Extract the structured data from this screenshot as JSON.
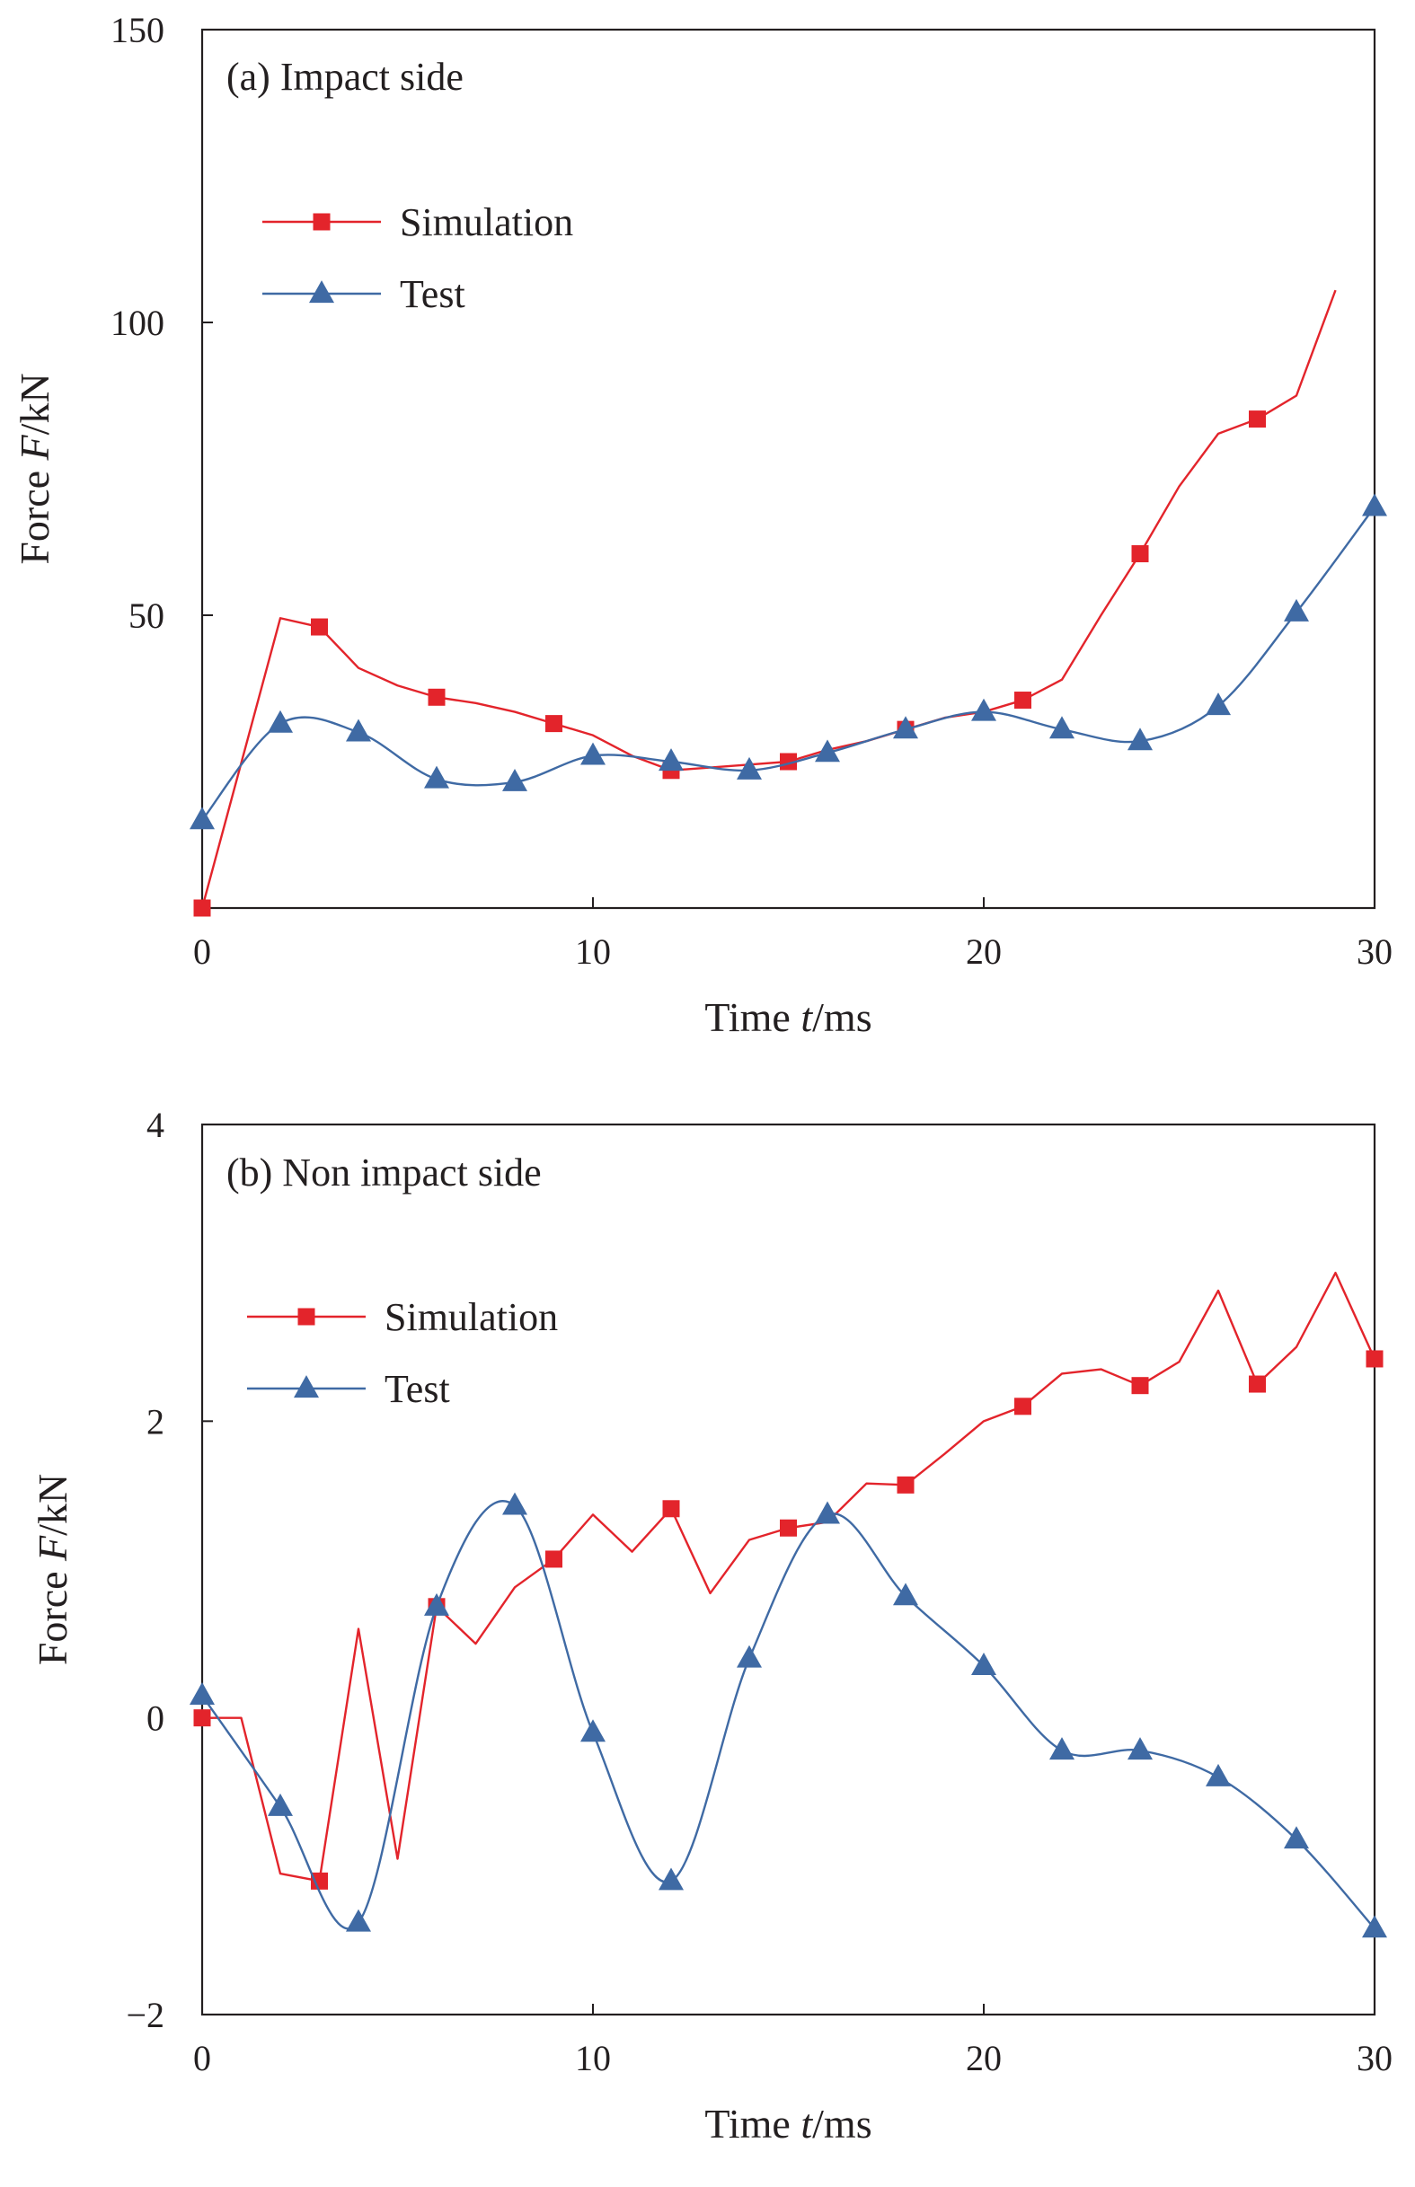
{
  "colors": {
    "simulation": "#e3242b",
    "test": "#3f6aa4",
    "axis": "#231f20"
  },
  "chart_data": [
    {
      "type": "line",
      "title": "(a) Impact side",
      "xlabel_pre": "Time ",
      "xlabel_var": "t",
      "xlabel_post": "/ms",
      "ylabel_pre": "Force ",
      "ylabel_var": "F",
      "ylabel_post": "/kN",
      "xlim": [
        0,
        30
      ],
      "ylim": [
        0,
        150
      ],
      "xticks": [
        "0",
        "10",
        "20",
        "30"
      ],
      "yticks": [
        "50",
        "100",
        "150"
      ],
      "x_tick_values": [
        0,
        10,
        20,
        30
      ],
      "y_tick_values": [
        50,
        100,
        150
      ],
      "legend_position": "upper-left",
      "series": [
        {
          "name": "Simulation",
          "color": "#e3242b",
          "marker": "square",
          "smooth": false,
          "x": [
            0,
            2,
            3,
            4,
            5,
            6,
            7,
            8,
            9,
            10,
            11,
            12,
            13,
            14,
            15,
            16,
            17,
            18,
            19,
            20,
            21,
            22,
            23,
            24,
            25,
            26,
            27,
            28,
            29
          ],
          "y": [
            0,
            49.5,
            48,
            41,
            38,
            36,
            35,
            33.5,
            31.5,
            29.5,
            26,
            23.5,
            24,
            24.5,
            25,
            27,
            28.5,
            30.5,
            32.5,
            33.5,
            35.5,
            39,
            50,
            60.5,
            72,
            81,
            83.5,
            87.5,
            105.5
          ],
          "marker_x": [
            0,
            3,
            6,
            9,
            12,
            15,
            18,
            21,
            24,
            27
          ]
        },
        {
          "name": "Test",
          "color": "#3f6aa4",
          "marker": "triangle",
          "smooth": true,
          "x": [
            0,
            2,
            4,
            6,
            8,
            10,
            12,
            14,
            16,
            18,
            20,
            22,
            24,
            26,
            28,
            30
          ],
          "y": [
            15,
            31.5,
            30,
            22,
            21.5,
            26,
            25,
            23.5,
            26.5,
            30.5,
            33.5,
            30.5,
            28.5,
            34.5,
            50.5,
            68.5
          ],
          "marker_x": [
            0,
            2,
            4,
            6,
            8,
            10,
            12,
            14,
            16,
            18,
            20,
            22,
            24,
            26,
            28,
            30
          ]
        }
      ]
    },
    {
      "type": "line",
      "title": "(b) Non impact side",
      "xlabel_pre": "Time ",
      "xlabel_var": "t",
      "xlabel_post": "/ms",
      "ylabel_pre": "Force ",
      "ylabel_var": "F",
      "ylabel_post": "/kN",
      "xlim": [
        0,
        30
      ],
      "ylim": [
        -2,
        4
      ],
      "xticks": [
        "0",
        "10",
        "20",
        "30"
      ],
      "yticks": [
        "−2",
        "0",
        "2",
        "4"
      ],
      "x_tick_values": [
        0,
        10,
        20,
        30
      ],
      "y_tick_values": [
        -2,
        0,
        2,
        4
      ],
      "legend_position": "upper-left",
      "series": [
        {
          "name": "Simulation",
          "color": "#e3242b",
          "marker": "square",
          "smooth": false,
          "x": [
            0,
            1,
            2,
            3,
            4,
            5,
            6,
            7,
            8,
            9,
            10,
            11,
            12,
            13,
            14,
            15,
            16,
            17,
            18,
            19,
            20,
            21,
            22,
            23,
            24,
            25,
            26,
            27,
            28,
            29,
            30
          ],
          "y": [
            0,
            0,
            -1.05,
            -1.1,
            0.6,
            -0.95,
            0.75,
            0.5,
            0.88,
            1.07,
            1.37,
            1.12,
            1.41,
            0.84,
            1.2,
            1.28,
            1.32,
            1.58,
            1.57,
            1.78,
            2.0,
            2.1,
            2.32,
            2.35,
            2.24,
            2.4,
            2.88,
            2.25,
            2.5,
            3.0,
            2.42
          ],
          "marker_x": [
            0,
            3,
            6,
            9,
            12,
            15,
            18,
            21,
            24,
            27,
            30
          ]
        },
        {
          "name": "Test",
          "color": "#3f6aa4",
          "marker": "triangle",
          "smooth": true,
          "x": [
            0,
            2,
            4,
            6,
            8,
            10,
            12,
            14,
            16,
            18,
            20,
            22,
            24,
            26,
            28,
            30
          ],
          "y": [
            0.15,
            -0.6,
            -1.38,
            0.75,
            1.43,
            -0.1,
            -1.1,
            0.4,
            1.37,
            0.82,
            0.35,
            -0.22,
            -0.22,
            -0.4,
            -0.82,
            -1.42
          ],
          "marker_x": [
            0,
            2,
            4,
            6,
            8,
            10,
            12,
            14,
            16,
            18,
            20,
            22,
            24,
            26,
            28,
            30
          ]
        }
      ]
    }
  ]
}
